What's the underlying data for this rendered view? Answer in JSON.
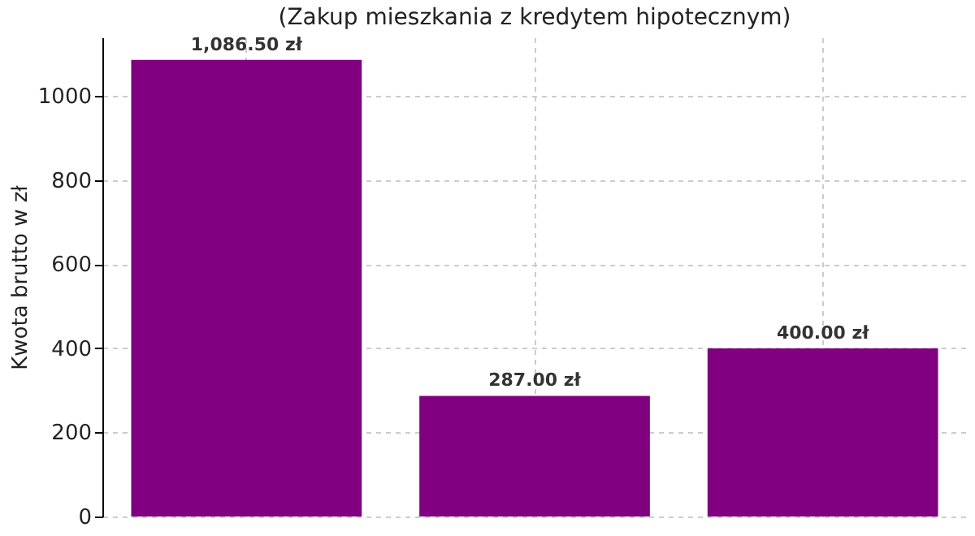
{
  "chart_data": {
    "type": "bar",
    "subtitle": "(Zakup mieszkania z kredytem hipotecznym)",
    "ylabel": "Kwota brutto w zł",
    "categories": [
      null,
      null,
      null
    ],
    "values": [
      1086.5,
      287.0,
      400.0
    ],
    "color": "#800080",
    "value_labels": [
      "1,086.50 zł",
      "287.00 zł",
      "400.00 zł"
    ],
    "ylim": [
      0,
      1140
    ],
    "yticks": [
      0,
      200,
      400,
      600,
      800,
      1000
    ],
    "grid": true
  }
}
